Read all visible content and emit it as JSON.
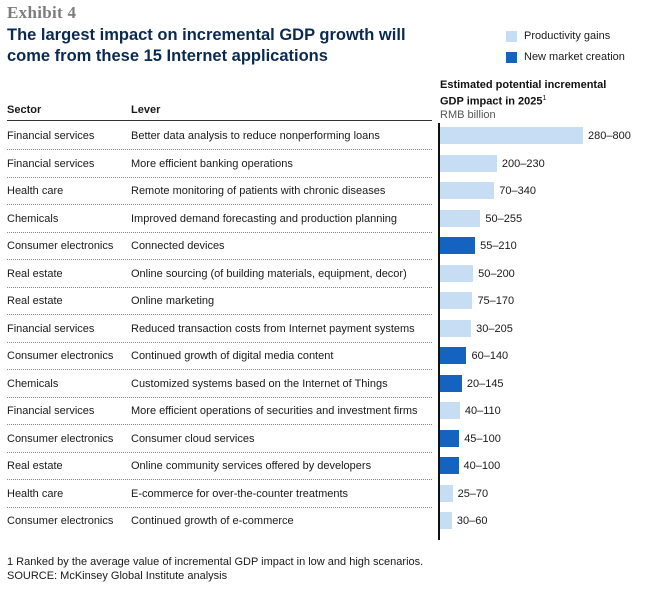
{
  "exhibit_label": "Exhibit 4",
  "title": "The largest impact on incremental GDP growth will come from these 15 Internet applications",
  "legend": [
    {
      "label": "Productivity gains",
      "color": "#c6ddf4"
    },
    {
      "label": "New market creation",
      "color": "#1563c0"
    }
  ],
  "metric_header": {
    "line1": "Estimated potential incremental",
    "line2": "GDP impact in 2025",
    "superscript": "1",
    "unit": "RMB billion"
  },
  "columns": {
    "sector": "Sector",
    "lever": "Lever"
  },
  "footnotes": {
    "note": "1 Ranked by the average value of incremental GDP impact in low and high scenarios.",
    "source": "SOURCE: McKinsey Global Institute analysis"
  },
  "chart_data": {
    "type": "bar",
    "title": "The largest impact on incremental GDP growth will come from these 15 Internet applications",
    "xlabel": "Estimated potential incremental GDP impact in 2025, RMB billion",
    "ylabel": "",
    "xlim": [
      0,
      540
    ],
    "orientation": "horizontal",
    "grid": false,
    "legend_position": "top-right",
    "rows": [
      {
        "sector": "Financial services",
        "lever": "Better data analysis to reduce nonperforming loans",
        "range_label": "280–800",
        "low": 280,
        "high": 800,
        "category": "Productivity gains"
      },
      {
        "sector": "Financial services",
        "lever": "More efficient banking operations",
        "range_label": "200–230",
        "low": 200,
        "high": 230,
        "category": "Productivity gains"
      },
      {
        "sector": "Health care",
        "lever": "Remote monitoring of patients with chronic diseases",
        "range_label": "70–340",
        "low": 70,
        "high": 340,
        "category": "Productivity gains"
      },
      {
        "sector": "Chemicals",
        "lever": "Improved demand forecasting and production planning",
        "range_label": "50–255",
        "low": 50,
        "high": 255,
        "category": "Productivity gains"
      },
      {
        "sector": "Consumer electronics",
        "lever": "Connected devices",
        "range_label": "55–210",
        "low": 55,
        "high": 210,
        "category": "New market creation"
      },
      {
        "sector": "Real estate",
        "lever": "Online sourcing (of building materials, equipment, decor)",
        "range_label": "50–200",
        "low": 50,
        "high": 200,
        "category": "Productivity gains"
      },
      {
        "sector": "Real estate",
        "lever": "Online marketing",
        "range_label": "75–170",
        "low": 75,
        "high": 170,
        "category": "Productivity gains"
      },
      {
        "sector": "Financial services",
        "lever": "Reduced transaction costs from Internet payment systems",
        "range_label": "30–205",
        "low": 30,
        "high": 205,
        "category": "Productivity gains"
      },
      {
        "sector": "Consumer electronics",
        "lever": "Continued growth of digital media content",
        "range_label": "60–140",
        "low": 60,
        "high": 140,
        "category": "New market creation"
      },
      {
        "sector": "Chemicals",
        "lever": "Customized systems based on the Internet of Things",
        "range_label": "20–145",
        "low": 20,
        "high": 145,
        "category": "New market creation"
      },
      {
        "sector": "Financial services",
        "lever": "More efficient operations of securities and investment firms",
        "range_label": "40–110",
        "low": 40,
        "high": 110,
        "category": "Productivity gains"
      },
      {
        "sector": "Consumer electronics",
        "lever": "Consumer cloud services",
        "range_label": "45–100",
        "low": 45,
        "high": 100,
        "category": "New market creation"
      },
      {
        "sector": "Real estate",
        "lever": "Online community services offered by developers",
        "range_label": "40–100",
        "low": 40,
        "high": 100,
        "category": "New market creation"
      },
      {
        "sector": "Health care",
        "lever": "E-commerce for over-the-counter treatments",
        "range_label": "25–70",
        "low": 25,
        "high": 70,
        "category": "Productivity gains"
      },
      {
        "sector": "Consumer electronics",
        "lever": "Continued growth of e-commerce",
        "range_label": "30–60",
        "low": 30,
        "high": 60,
        "category": "Productivity gains"
      }
    ]
  }
}
